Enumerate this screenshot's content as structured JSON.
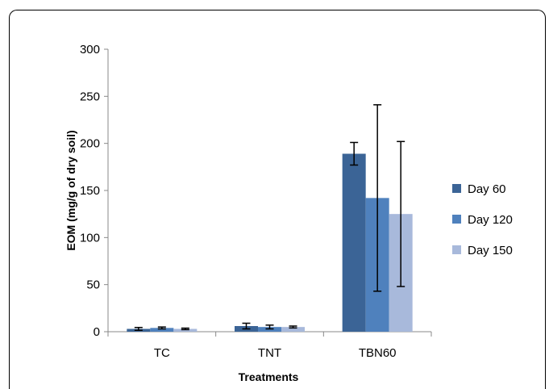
{
  "chart_data": {
    "type": "bar",
    "title": "",
    "xlabel": "Treatments",
    "ylabel": "EOM (mg/g of dry soil)",
    "ylim": [
      0,
      300
    ],
    "yticks": [
      0,
      50,
      100,
      150,
      200,
      250,
      300
    ],
    "categories": [
      "TC",
      "TNT",
      "TBN60"
    ],
    "series": [
      {
        "name": "Day 60",
        "color": "#3b6496",
        "values": [
          3,
          6,
          189
        ],
        "errors": [
          1.5,
          3,
          12
        ]
      },
      {
        "name": "Day 120",
        "color": "#4f81bd",
        "values": [
          4,
          5,
          142
        ],
        "errors": [
          1,
          2,
          99
        ]
      },
      {
        "name": "Day 150",
        "color": "#a8b9db",
        "values": [
          3,
          5,
          125
        ],
        "errors": [
          0.8,
          1,
          77
        ]
      }
    ],
    "legend_position": "right",
    "grid": false
  }
}
